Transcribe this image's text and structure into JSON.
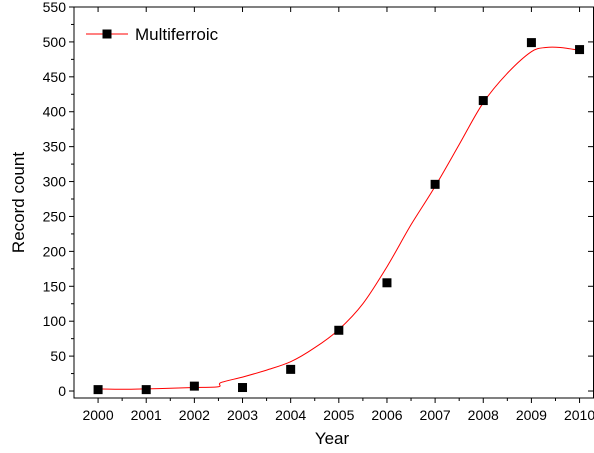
{
  "chart_data": {
    "type": "scatter",
    "title": "",
    "xlabel": "Year",
    "ylabel": "Record count",
    "xlim": [
      1999.5,
      2010.3
    ],
    "ylim": [
      -10,
      550
    ],
    "x_ticks": [
      "2000",
      "2001",
      "2002",
      "2003",
      "2004",
      "2005",
      "2006",
      "2007",
      "2008",
      "2009",
      "2010"
    ],
    "y_ticks": [
      "0",
      "50",
      "100",
      "150",
      "200",
      "250",
      "300",
      "350",
      "400",
      "450",
      "500",
      "550"
    ],
    "grid": false,
    "legend_position": "top-left",
    "series": [
      {
        "name": "Multiferroic",
        "marker": "square",
        "marker_color": "#000000",
        "line_color": "#ff0000",
        "x": [
          2000,
          2001,
          2002,
          2003,
          2004,
          2005,
          2006,
          2007,
          2008,
          2009,
          2010
        ],
        "y": [
          2,
          2,
          7,
          5,
          31,
          87,
          155,
          296,
          416,
          499,
          489
        ],
        "fit_curve": {
          "x": [
            2000,
            2000.5,
            2001,
            2001.5,
            2002,
            2002.5,
            2002.55,
            2003,
            2003.5,
            2004,
            2004.5,
            2005,
            2005.5,
            2006,
            2006.5,
            2007,
            2007.5,
            2008,
            2008.5,
            2009,
            2009.3,
            2009.6,
            2010
          ],
          "y": [
            3,
            2.5,
            3,
            4,
            5,
            6,
            12,
            20,
            30,
            42,
            62,
            88,
            125,
            178,
            238,
            293,
            353,
            413,
            455,
            486,
            492,
            492,
            488
          ]
        }
      }
    ]
  }
}
